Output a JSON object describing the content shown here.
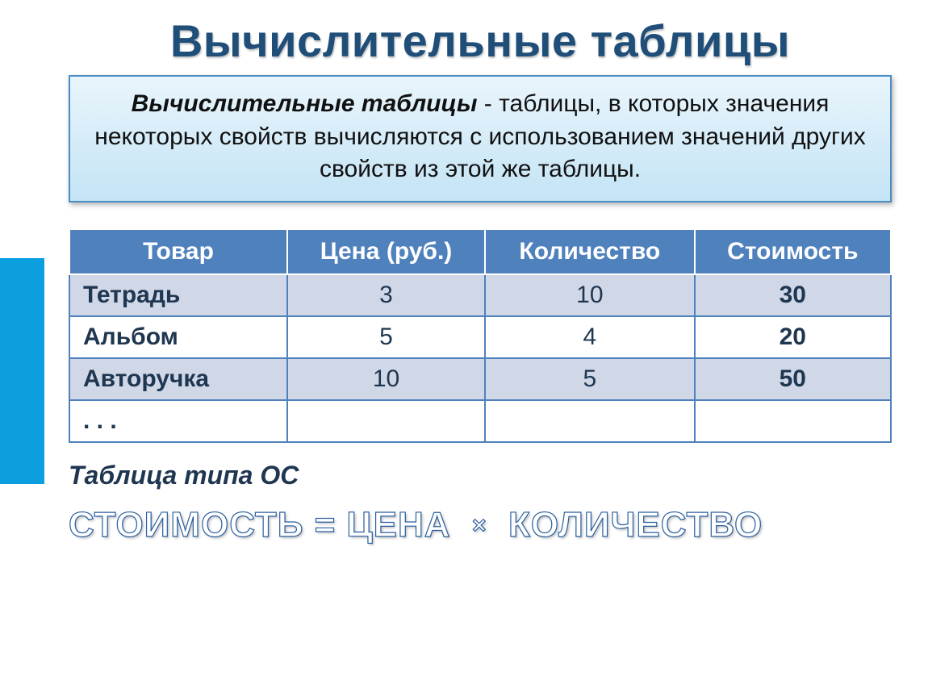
{
  "title": "Вычислительные таблицы",
  "definition": {
    "term": "Вычислительные таблицы",
    "rest": " - таблицы, в которых значения некоторых свойств вычисляются с использованием  значений других свойств из этой же таблицы."
  },
  "table": {
    "columns": [
      "Товар",
      "Цена (руб.)",
      "Количество",
      "Стоимость"
    ],
    "rows": [
      {
        "product": "Тетрадь",
        "price": "3",
        "qty": "10",
        "total": "30"
      },
      {
        "product": "Альбом",
        "price": "5",
        "qty": "4",
        "total": "20"
      },
      {
        "product": "Авторучка",
        "price": "10",
        "qty": "5",
        "total": "50"
      },
      {
        "product": ". . .",
        "price": "",
        "qty": "",
        "total": ""
      }
    ]
  },
  "caption": "Таблица типа ОС",
  "formula": {
    "lhs": "СТОИМОСТЬ",
    "eq": " = ",
    "a": "ЦЕНА",
    "mult": "×",
    "b": "КОЛИЧЕСТВО"
  },
  "colors": {
    "title": "#1f4e79",
    "headerBg": "#4f81bd",
    "rowAlt": "#d0d8e8",
    "border": "#4f81bd",
    "stripe": "#0b9fe0"
  }
}
